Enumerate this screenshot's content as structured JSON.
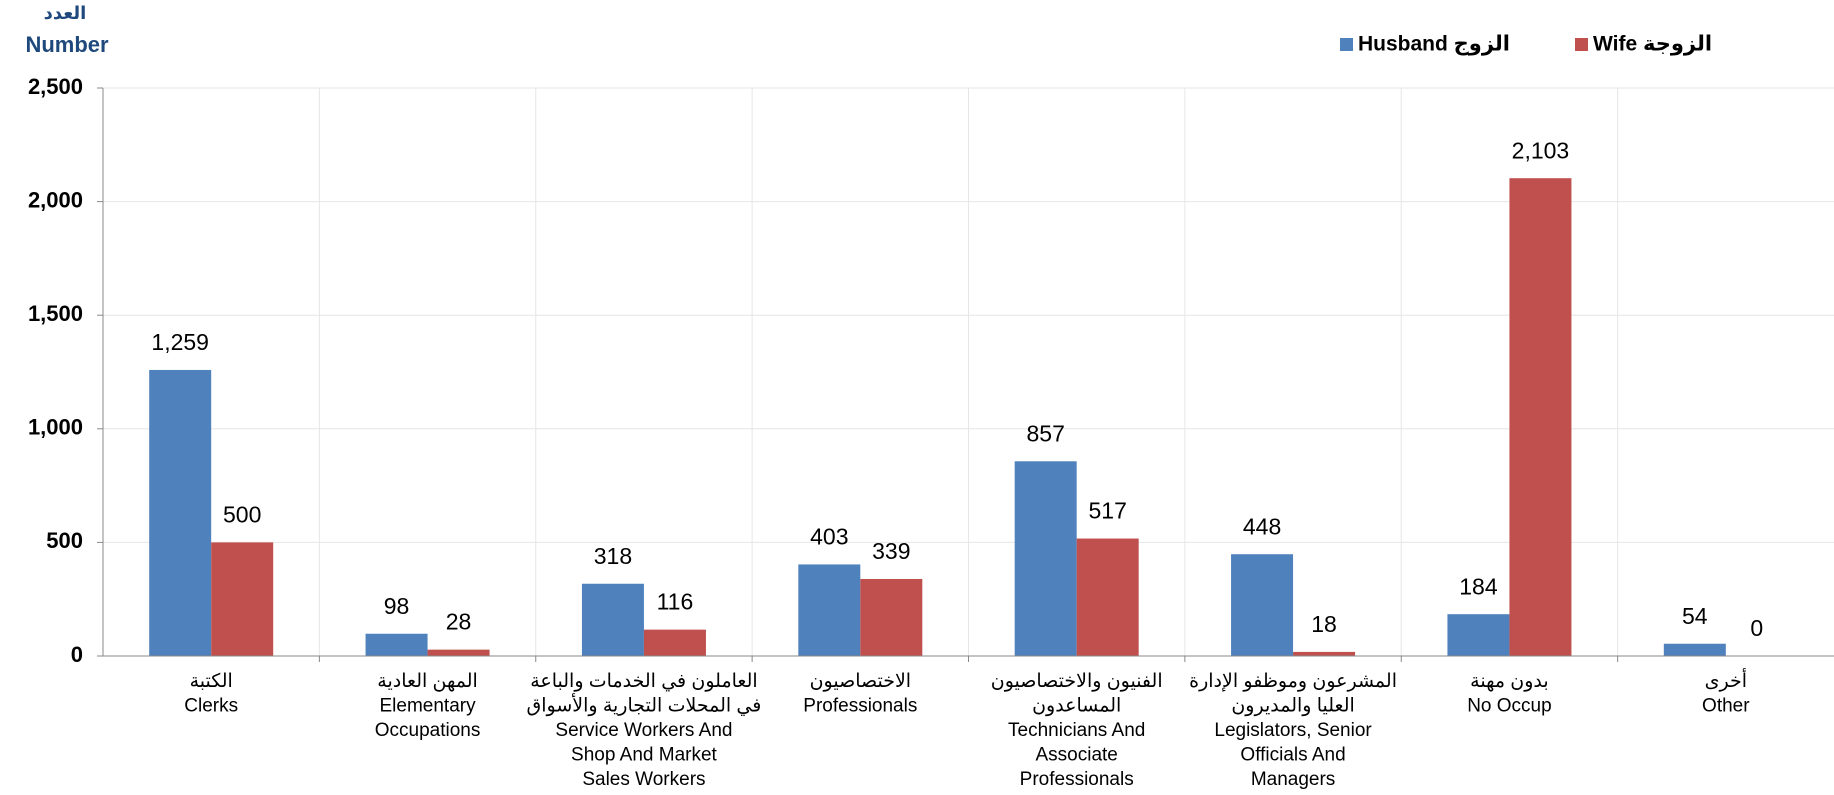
{
  "chart_data": {
    "type": "bar",
    "ylabel": [
      "العدد",
      "Number"
    ],
    "categories": [
      [
        "الكتبة",
        "Clerks"
      ],
      [
        "المهن العادية",
        "Elementary",
        "Occupations"
      ],
      [
        "العاملون في الخدمات والباعة",
        "في المحلات التجارية والأسواق",
        "Service Workers And",
        "Shop And Market",
        "Sales Workers"
      ],
      [
        "الاختصاصيون",
        "Professionals"
      ],
      [
        "الفنيون والاختصاصيون",
        "المساعدون",
        "Technicians And",
        "Associate",
        "Professionals"
      ],
      [
        "المشرعون وموظفو الإدارة",
        "العليا والمديرون",
        "Legislators, Senior",
        "Officials And",
        "Managers"
      ],
      [
        "بدون مهنة",
        "No Occup"
      ],
      [
        "أخرى",
        "Other"
      ]
    ],
    "series": [
      {
        "name": "Husband الزوج",
        "color": "#4f81bd",
        "values": [
          1259,
          98,
          318,
          403,
          857,
          448,
          184,
          54
        ],
        "value_labels": [
          "1,259",
          "98",
          "318",
          "403",
          "857",
          "448",
          "184",
          "54"
        ]
      },
      {
        "name": "Wife الزوجة",
        "color": "#c0504d",
        "values": [
          500,
          28,
          116,
          339,
          517,
          18,
          2103,
          0
        ],
        "value_labels": [
          "500",
          "28",
          "116",
          "339",
          "517",
          "18",
          "2,103",
          "0"
        ]
      }
    ],
    "ylim": [
      0,
      2500
    ],
    "yticks": [
      0,
      500,
      {
        "value": 1000,
        "label": "1,000"
      },
      {
        "value": 1500,
        "label": "1,500"
      },
      {
        "value": 2000,
        "label": "2,000"
      },
      {
        "value": 2500,
        "label": "2,500"
      }
    ],
    "grid": true
  }
}
